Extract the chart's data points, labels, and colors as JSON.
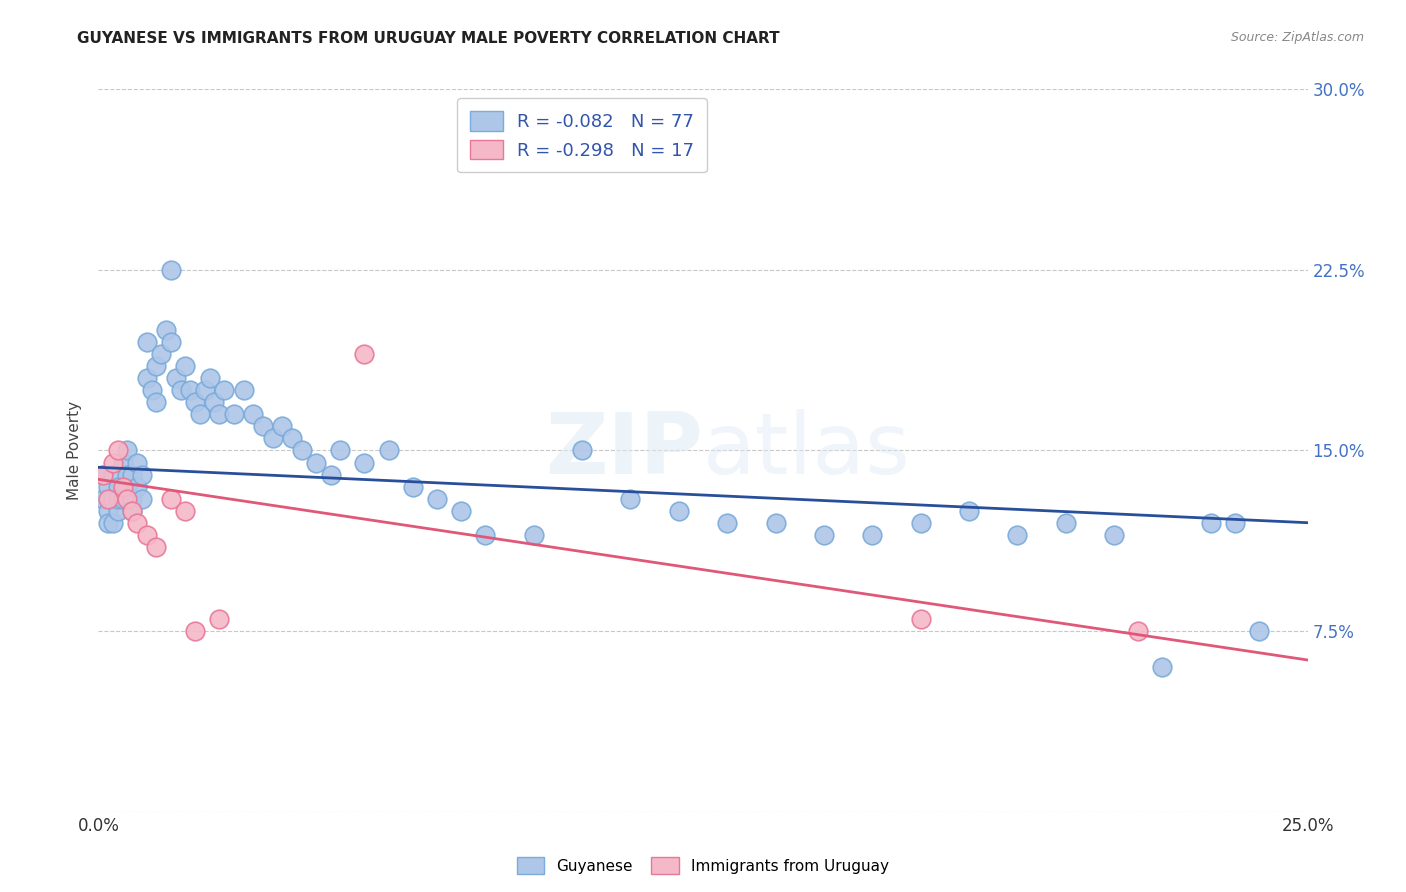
{
  "title": "GUYANESE VS IMMIGRANTS FROM URUGUAY MALE POVERTY CORRELATION CHART",
  "source": "Source: ZipAtlas.com",
  "ylabel": "Male Poverty",
  "xlim": [
    0.0,
    0.25
  ],
  "ylim": [
    0.0,
    0.3
  ],
  "xticks": [
    0.0,
    0.05,
    0.1,
    0.15,
    0.2,
    0.25
  ],
  "yticks": [
    0.0,
    0.075,
    0.15,
    0.225,
    0.3
  ],
  "xtick_labels": [
    "0.0%",
    "",
    "",
    "",
    "",
    "25.0%"
  ],
  "ytick_labels": [
    "",
    "7.5%",
    "15.0%",
    "22.5%",
    "30.0%"
  ],
  "background_color": "#ffffff",
  "grid_color": "#c8c8c8",
  "guyanese_color": "#aec6e8",
  "guyanese_edge_color": "#7aabda",
  "uruguay_color": "#f5b8c8",
  "uruguay_edge_color": "#e87898",
  "line_blue": "#2a4f9a",
  "line_pink": "#e05878",
  "legend_label_1": "R = -0.082   N = 77",
  "legend_label_2": "R = -0.298   N = 17",
  "legend_group_1": "Guyanese",
  "legend_group_2": "Immigrants from Uruguay",
  "guyanese_x": [
    0.001,
    0.001,
    0.002,
    0.002,
    0.002,
    0.003,
    0.003,
    0.003,
    0.004,
    0.004,
    0.004,
    0.005,
    0.005,
    0.006,
    0.006,
    0.006,
    0.007,
    0.007,
    0.007,
    0.008,
    0.008,
    0.009,
    0.009,
    0.01,
    0.01,
    0.011,
    0.012,
    0.012,
    0.013,
    0.014,
    0.015,
    0.015,
    0.016,
    0.017,
    0.018,
    0.019,
    0.02,
    0.021,
    0.022,
    0.023,
    0.024,
    0.025,
    0.026,
    0.028,
    0.03,
    0.032,
    0.034,
    0.036,
    0.038,
    0.04,
    0.042,
    0.045,
    0.048,
    0.05,
    0.055,
    0.06,
    0.065,
    0.07,
    0.075,
    0.08,
    0.09,
    0.1,
    0.11,
    0.12,
    0.13,
    0.14,
    0.15,
    0.16,
    0.17,
    0.18,
    0.19,
    0.2,
    0.21,
    0.22,
    0.23,
    0.235,
    0.24
  ],
  "guyanese_y": [
    0.14,
    0.13,
    0.135,
    0.125,
    0.12,
    0.13,
    0.14,
    0.12,
    0.135,
    0.125,
    0.13,
    0.145,
    0.13,
    0.14,
    0.15,
    0.135,
    0.14,
    0.13,
    0.125,
    0.145,
    0.135,
    0.14,
    0.13,
    0.18,
    0.195,
    0.175,
    0.185,
    0.17,
    0.19,
    0.2,
    0.225,
    0.195,
    0.18,
    0.175,
    0.185,
    0.175,
    0.17,
    0.165,
    0.175,
    0.18,
    0.17,
    0.165,
    0.175,
    0.165,
    0.175,
    0.165,
    0.16,
    0.155,
    0.16,
    0.155,
    0.15,
    0.145,
    0.14,
    0.15,
    0.145,
    0.15,
    0.135,
    0.13,
    0.125,
    0.115,
    0.115,
    0.15,
    0.13,
    0.125,
    0.12,
    0.12,
    0.115,
    0.115,
    0.12,
    0.125,
    0.115,
    0.12,
    0.115,
    0.06,
    0.12,
    0.12,
    0.075
  ],
  "uruguay_x": [
    0.001,
    0.002,
    0.003,
    0.004,
    0.005,
    0.006,
    0.007,
    0.008,
    0.01,
    0.012,
    0.015,
    0.018,
    0.02,
    0.025,
    0.055,
    0.17,
    0.215
  ],
  "uruguay_y": [
    0.14,
    0.13,
    0.145,
    0.15,
    0.135,
    0.13,
    0.125,
    0.12,
    0.115,
    0.11,
    0.13,
    0.125,
    0.075,
    0.08,
    0.19,
    0.08,
    0.075
  ],
  "blue_trend_x": [
    0.0,
    0.25
  ],
  "blue_trend_y": [
    0.143,
    0.12
  ],
  "pink_trend_x": [
    0.0,
    0.25
  ],
  "pink_trend_y": [
    0.138,
    0.063
  ]
}
